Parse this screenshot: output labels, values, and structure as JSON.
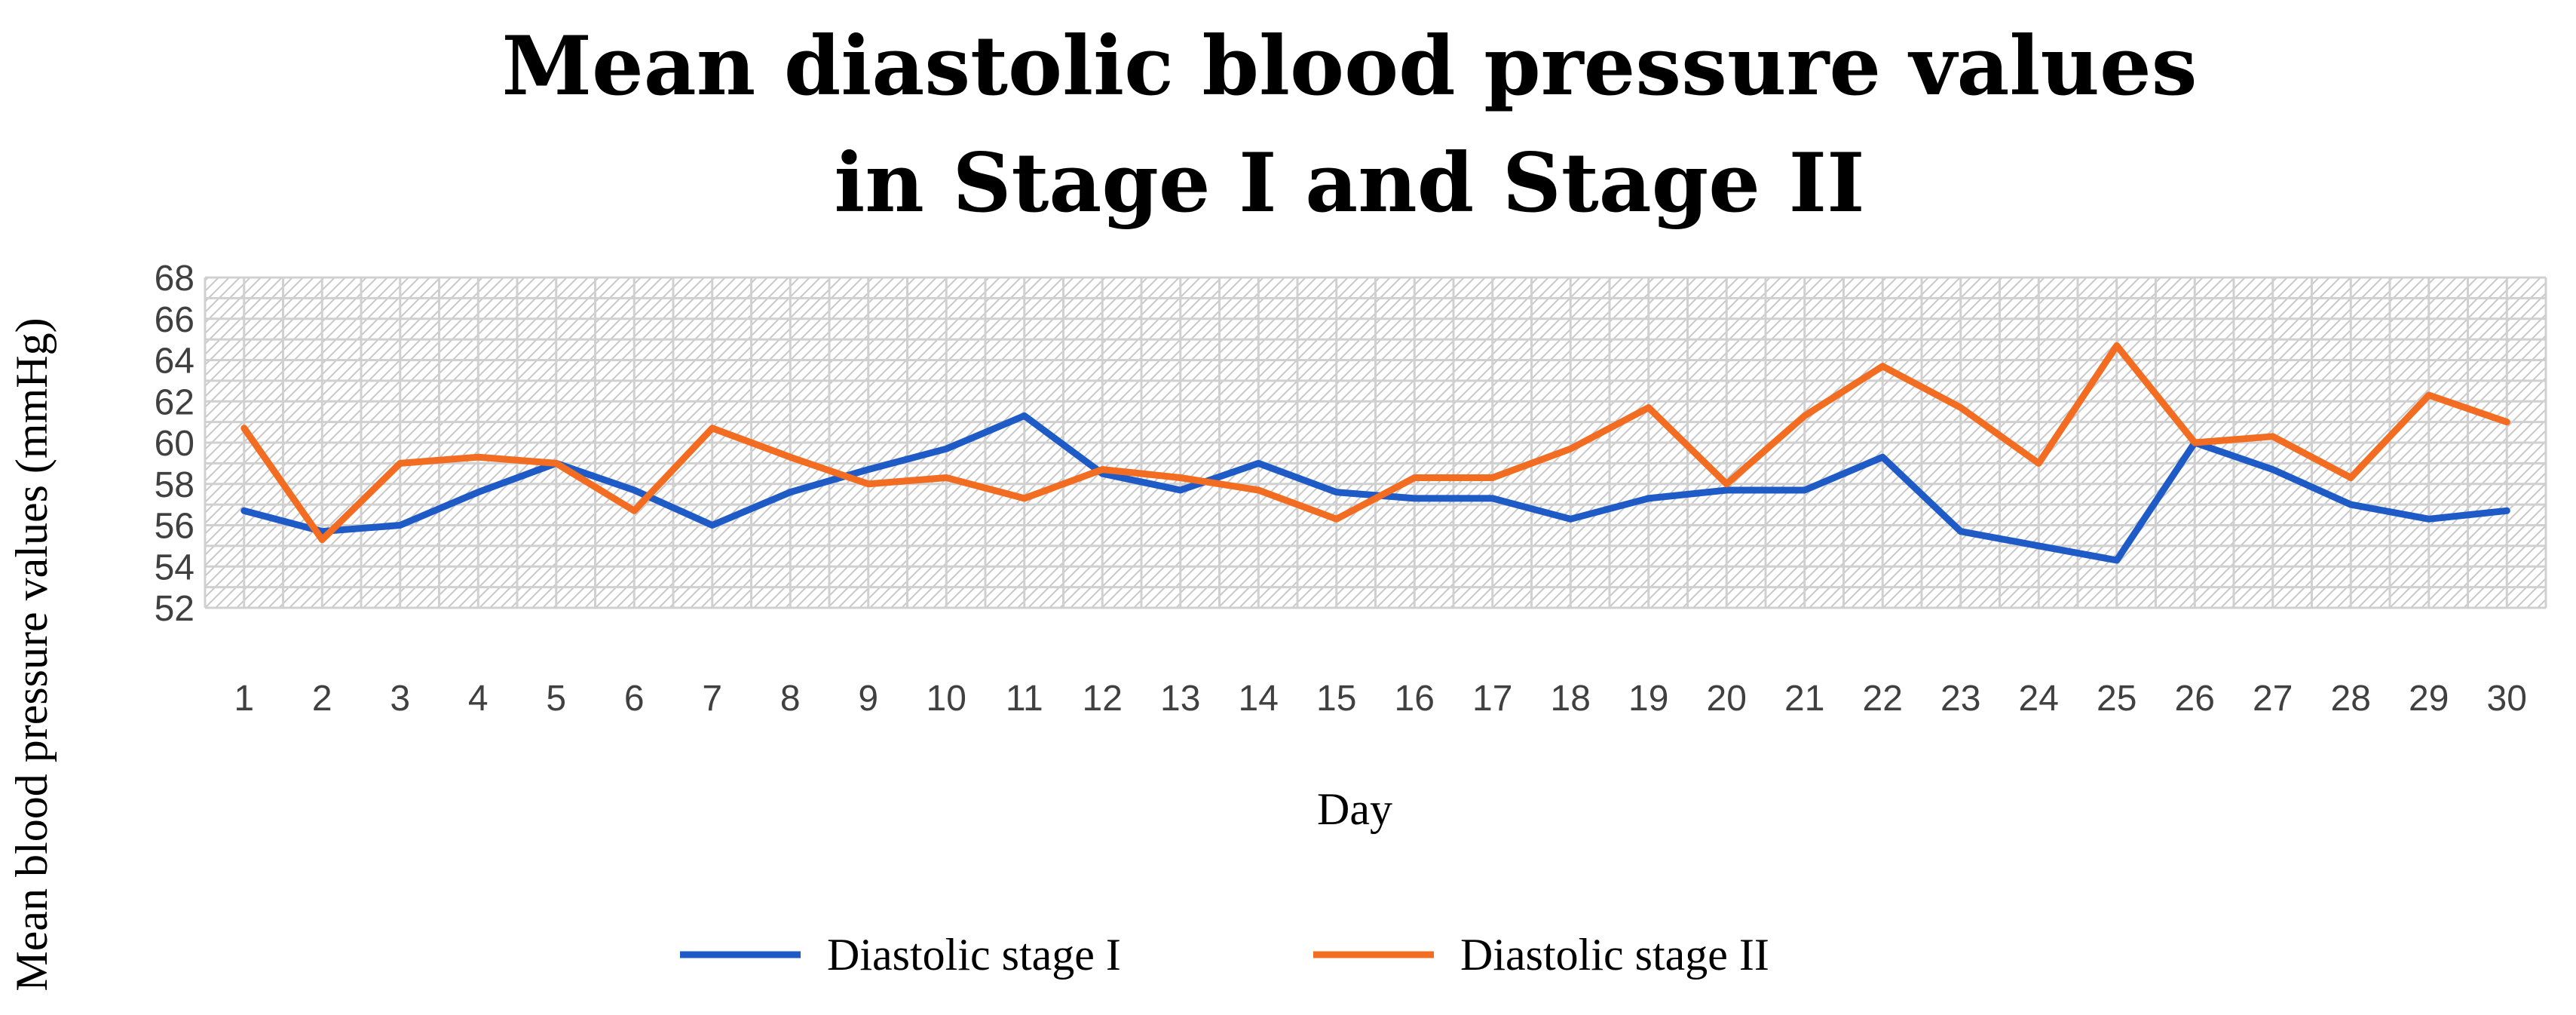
{
  "chart_data": {
    "type": "line",
    "title": [
      "Mean diastolic blood pressure values",
      "in Stage I and Stage II"
    ],
    "xlabel": "Day",
    "ylabel": "Mean blood pressure values (mmHg)",
    "ylim": [
      52,
      68
    ],
    "y_ticks": [
      52,
      54,
      56,
      58,
      60,
      62,
      64,
      66,
      68
    ],
    "categories": [
      "1",
      "2",
      "3",
      "4",
      "5",
      "6",
      "7",
      "8",
      "9",
      "10",
      "11",
      "12",
      "13",
      "14",
      "15",
      "16",
      "17",
      "18",
      "19",
      "20",
      "21",
      "22",
      "23",
      "24",
      "25",
      "26",
      "27",
      "28",
      "29",
      "30"
    ],
    "grid": true,
    "legend_position": "bottom",
    "series": [
      {
        "name": "Diastolic stage I",
        "color": "#1f5bc6",
        "values": [
          56.7,
          55.7,
          56.0,
          57.6,
          59.0,
          57.7,
          56.0,
          57.6,
          58.7,
          59.7,
          61.3,
          58.5,
          57.7,
          59.0,
          57.6,
          57.3,
          57.3,
          56.3,
          57.3,
          57.7,
          57.7,
          59.3,
          55.7,
          55.0,
          54.3,
          60.0,
          58.7,
          57.0,
          56.3,
          56.7
        ]
      },
      {
        "name": "Diastolic stage II",
        "color": "#f26c22",
        "values": [
          60.7,
          55.3,
          59.0,
          59.3,
          59.0,
          56.7,
          60.7,
          59.3,
          58.0,
          58.3,
          57.3,
          58.7,
          58.3,
          57.7,
          56.3,
          58.3,
          58.3,
          59.7,
          61.7,
          58.0,
          61.3,
          63.7,
          61.7,
          59.0,
          64.7,
          60.0,
          60.3,
          58.3,
          62.3,
          61.0
        ]
      }
    ]
  }
}
